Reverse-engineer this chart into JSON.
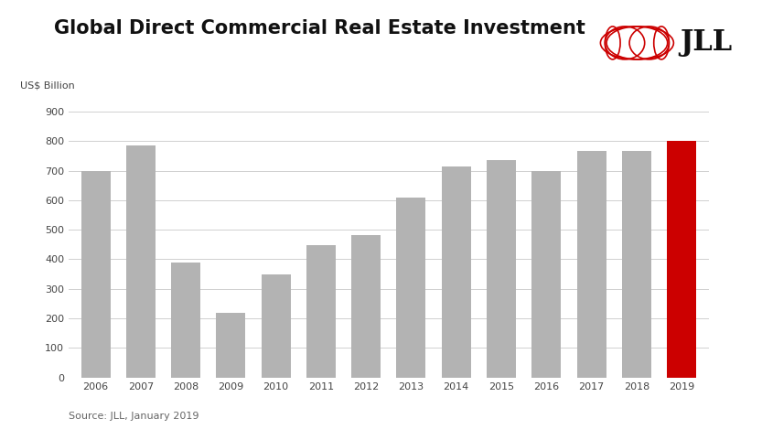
{
  "title": "Global Direct Commercial Real Estate Investment",
  "ylabel": "US$ Billion",
  "source_text": "Source: JLL, January 2019",
  "years": [
    2006,
    2007,
    2008,
    2009,
    2010,
    2011,
    2012,
    2013,
    2014,
    2015,
    2016,
    2017,
    2018,
    2019
  ],
  "values": [
    700,
    785,
    390,
    220,
    350,
    448,
    483,
    608,
    715,
    737,
    700,
    768,
    768,
    800
  ],
  "bar_colors": [
    "#b3b3b3",
    "#b3b3b3",
    "#b3b3b3",
    "#b3b3b3",
    "#b3b3b3",
    "#b3b3b3",
    "#b3b3b3",
    "#b3b3b3",
    "#b3b3b3",
    "#b3b3b3",
    "#b3b3b3",
    "#b3b3b3",
    "#b3b3b3",
    "#cc0000"
  ],
  "ylim": [
    0,
    900
  ],
  "yticks": [
    0,
    100,
    200,
    300,
    400,
    500,
    600,
    700,
    800,
    900
  ],
  "background_color": "#ffffff",
  "grid_color": "#d0d0d0",
  "title_fontsize": 15,
  "tick_fontsize": 8,
  "ylabel_fontsize": 8,
  "source_fontsize": 8,
  "logo_color": "#cc0000",
  "jll_text_color": "#111111"
}
